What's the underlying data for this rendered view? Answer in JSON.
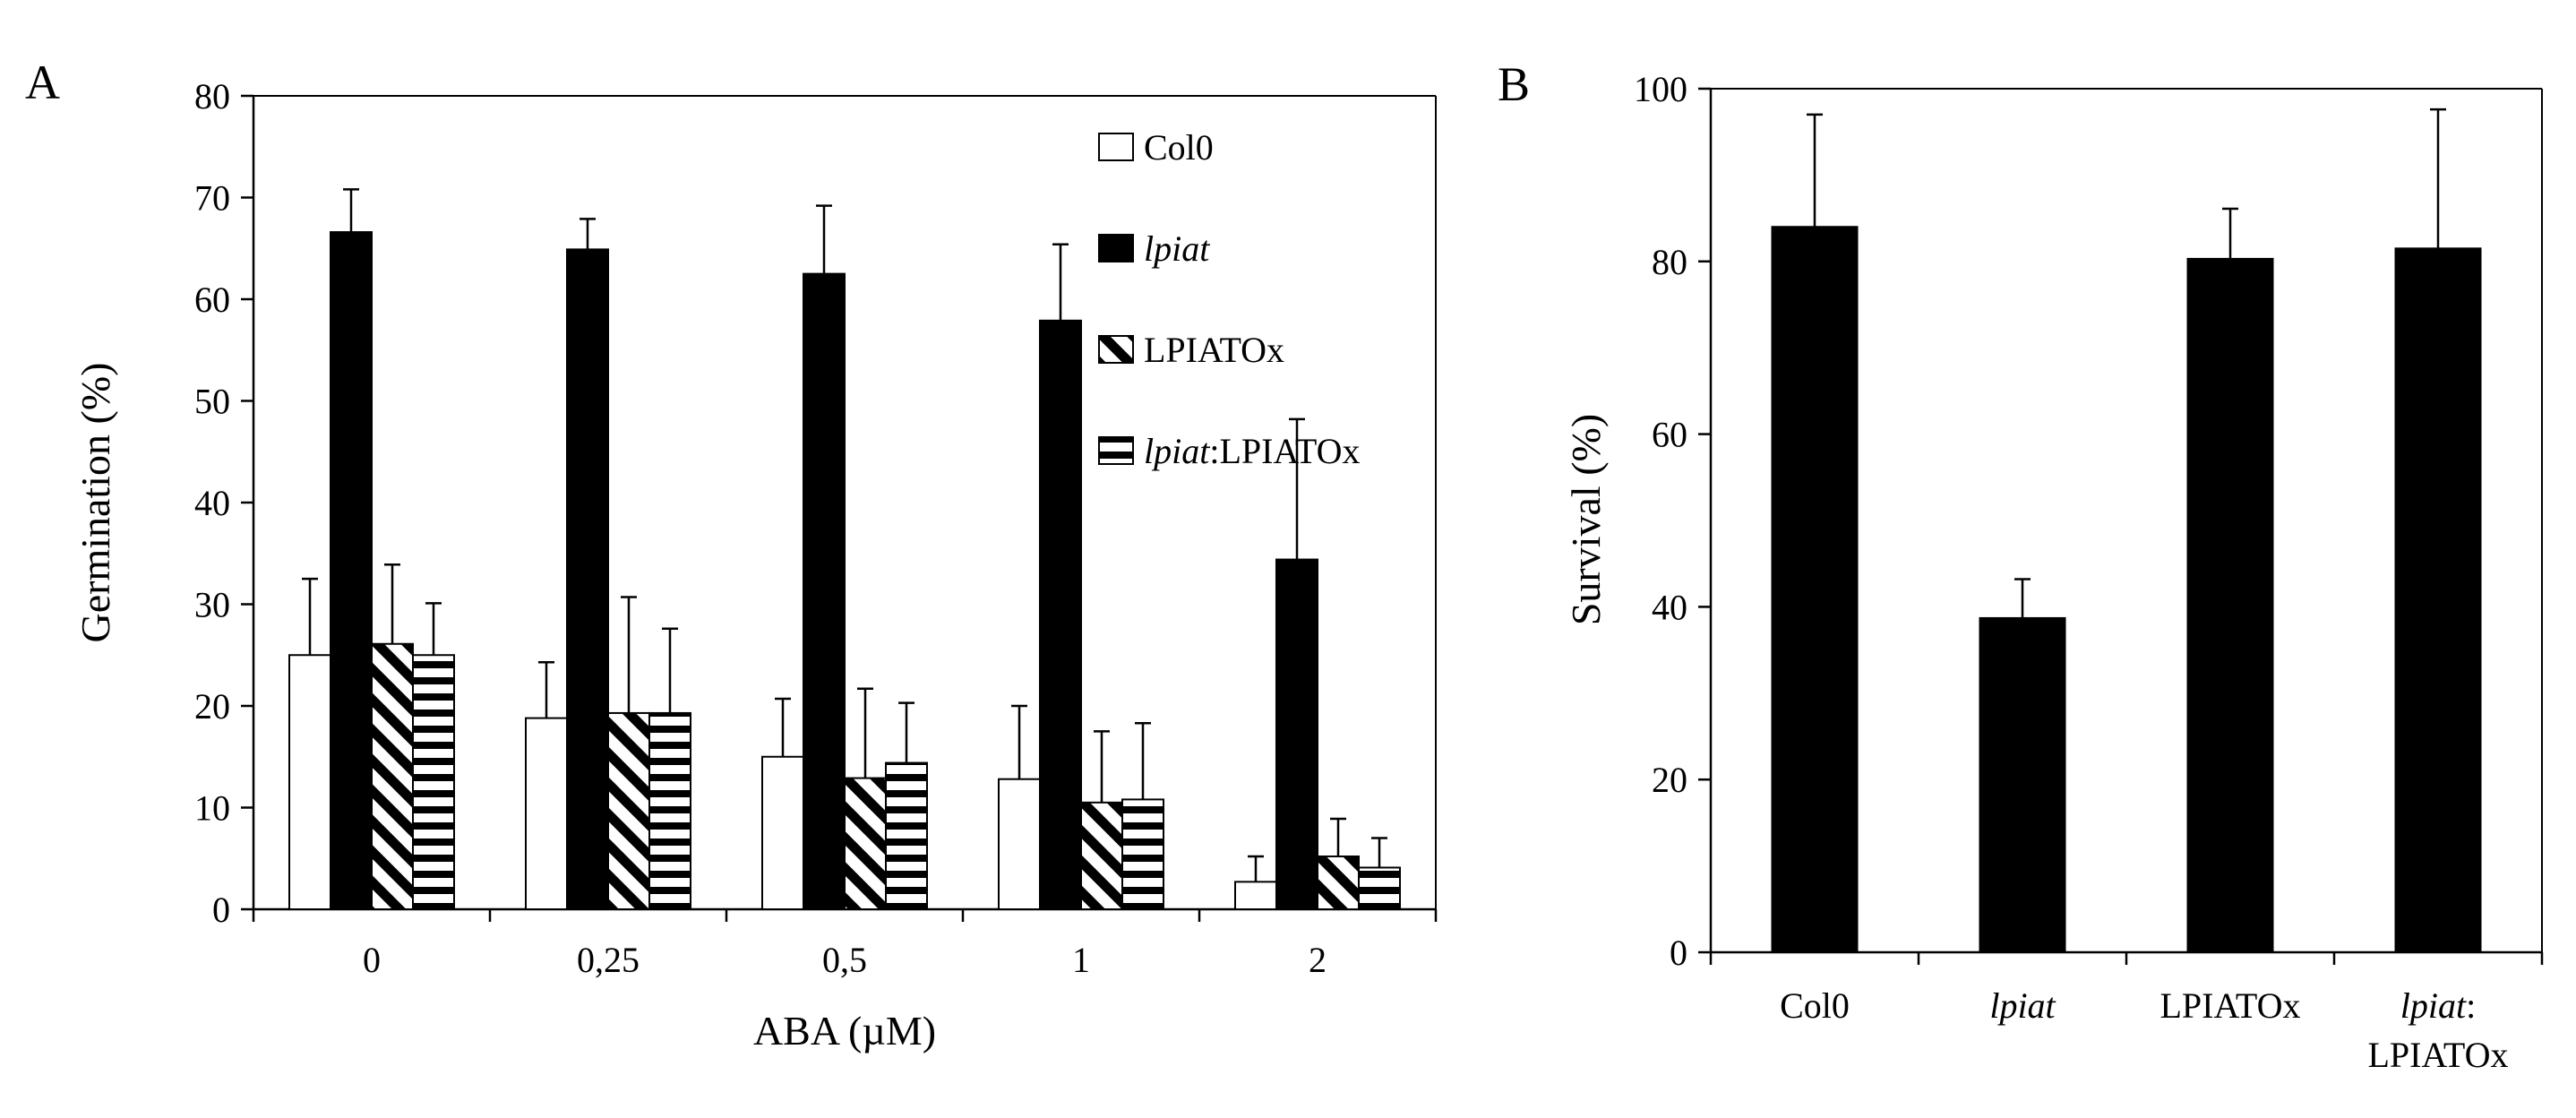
{
  "chart_data": [
    {
      "panel": "A",
      "type": "bar",
      "xlabel": "ABA (µM)",
      "ylabel": "Germination (%)",
      "ylim": [
        0,
        80
      ],
      "yticks": [
        "0",
        "10",
        "20",
        "30",
        "40",
        "50",
        "60",
        "70",
        "80"
      ],
      "categories": [
        "0",
        "0,25",
        "0,5",
        "1",
        "2"
      ],
      "legend_position": "top-right",
      "series": [
        {
          "name": "Col0",
          "label": "Col0",
          "fill": "white",
          "values": [
            25,
            18.8,
            15,
            12.8,
            2.7
          ],
          "errors": [
            7.5,
            5.5,
            5.7,
            7.2,
            2.5
          ]
        },
        {
          "name": "lpiat",
          "label": "lpiat",
          "label_italic": "lpiat",
          "fill": "black",
          "values": [
            66.6,
            64.9,
            62.5,
            57.9,
            34.4
          ],
          "errors": [
            4.2,
            3.0,
            6.7,
            7.5,
            13.8
          ]
        },
        {
          "name": "LPIATOx",
          "label": "LPIATOx",
          "fill": "diagonal",
          "values": [
            26.1,
            19.3,
            12.9,
            10.5,
            5.2
          ],
          "errors": [
            7.8,
            11.4,
            8.8,
            7.0,
            3.7
          ]
        },
        {
          "name": "lpiat:LPIATOx",
          "label": ":LPIATOx",
          "label_italic": "lpiat",
          "fill": "horizontal",
          "values": [
            25.0,
            19.3,
            14.4,
            10.8,
            4.1
          ],
          "errors": [
            5.1,
            8.3,
            5.9,
            7.5,
            2.9
          ]
        }
      ]
    },
    {
      "panel": "B",
      "type": "bar",
      "xlabel": "",
      "ylabel": "Survival (%)",
      "ylim": [
        0,
        100
      ],
      "yticks": [
        "0",
        "20",
        "40",
        "60",
        "80",
        "100"
      ],
      "categories": [
        "Col0",
        "lpiat",
        "LPIATOx",
        "lpiat:LPIATOx"
      ],
      "category_labels": [
        {
          "line1": "Col0"
        },
        {
          "line1": "lpiat",
          "italic": true
        },
        {
          "line1": "LPIATOx"
        },
        {
          "line1": "lpiat:",
          "line1_italic": "lpiat",
          "line2": "LPIATOx"
        }
      ],
      "values": [
        84.0,
        38.7,
        80.3,
        81.5
      ],
      "errors": [
        13.0,
        4.5,
        5.8,
        16.1
      ]
    }
  ]
}
